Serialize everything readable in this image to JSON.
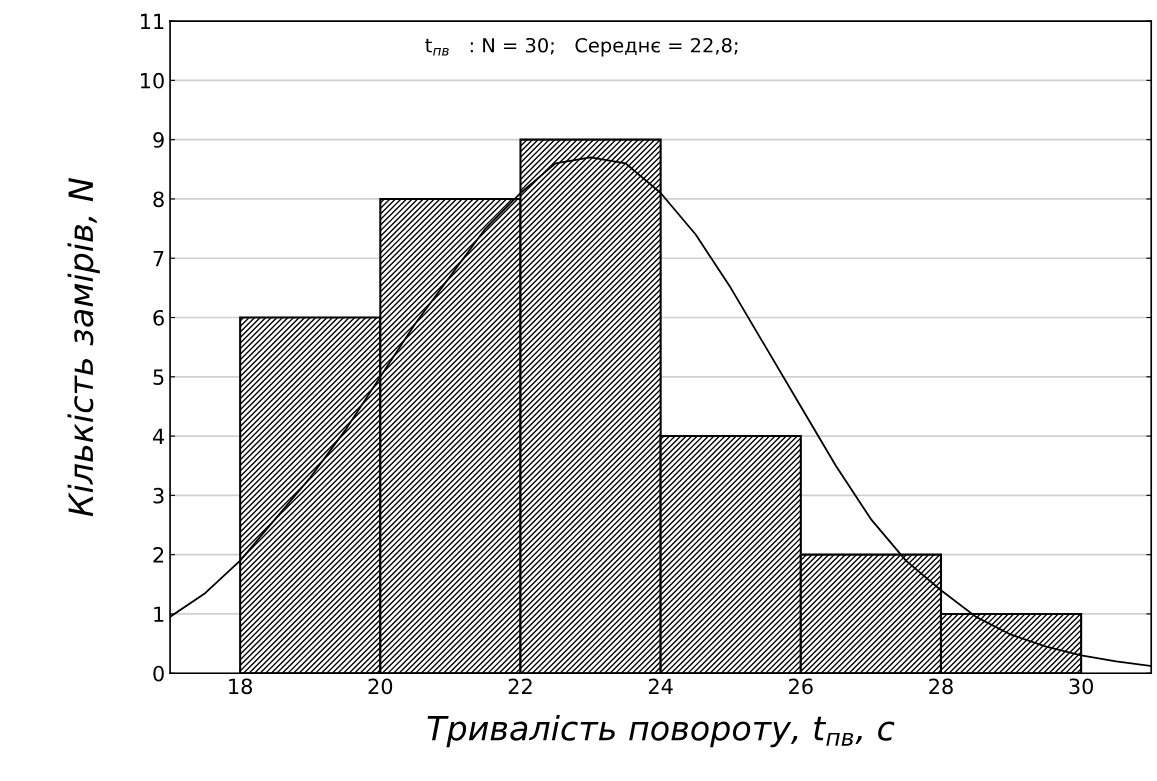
{
  "chart_data": {
    "type": "histogram",
    "xlabel": "Тривалість повороту, t$_{пв}$, с",
    "ylabel": "Кількість замірів, N",
    "annotations": [
      "t$_{пв}$   : N = 30;   Середнє = 22,8;"
    ],
    "bins": [
      18,
      20,
      22,
      24,
      26,
      28,
      30
    ],
    "series": [
      {
        "color": "#000000",
        "values": [
          6,
          8,
          9,
          4,
          2,
          1
        ]
      },
      {
        "type": "line",
        "color": "#000000",
        "x": [
          17,
          17.5,
          18,
          18.5,
          19,
          19.5,
          20,
          20.5,
          21,
          21.5,
          22,
          22.5,
          23,
          23.5,
          24,
          24.5,
          25,
          25.5,
          26,
          26.5,
          27,
          27.5,
          28,
          28.5,
          29,
          29.5,
          30,
          30.5,
          31
        ],
        "values": [
          0.95,
          1.35,
          1.9,
          2.6,
          3.3,
          4.1,
          5.0,
          5.9,
          6.7,
          7.5,
          8.1,
          8.6,
          8.7,
          8.6,
          8.1,
          7.4,
          6.5,
          5.5,
          4.5,
          3.5,
          2.6,
          1.9,
          1.4,
          0.95,
          0.65,
          0.45,
          0.3,
          0.2,
          0.12
        ]
      }
    ],
    "xlim": [
      17,
      31
    ],
    "xticks": [
      18,
      20,
      22,
      24,
      26,
      28,
      30
    ],
    "ylim": [
      0,
      11
    ],
    "yticks": [
      0,
      1,
      2,
      3,
      4,
      5,
      6,
      7,
      8,
      9,
      10,
      11
    ],
    "grid": "y",
    "legend": false
  }
}
